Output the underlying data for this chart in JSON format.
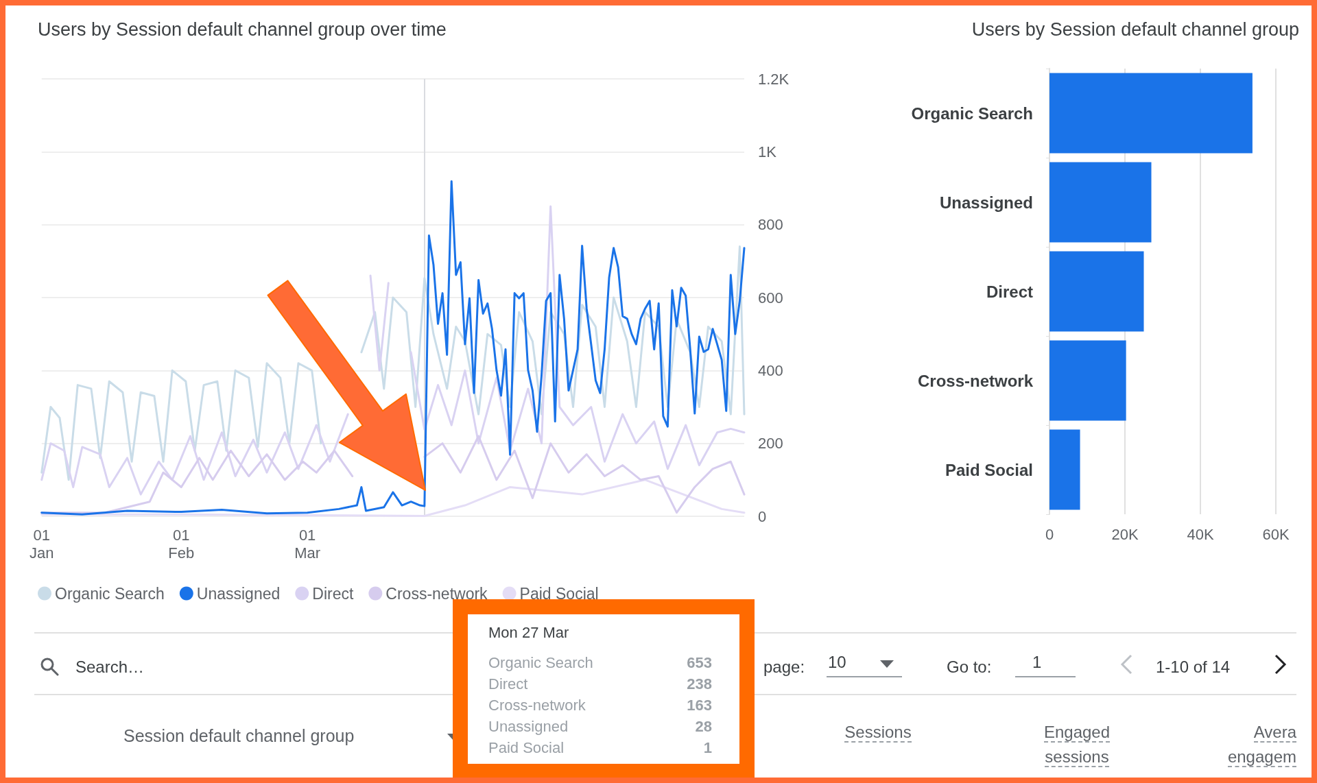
{
  "chart_data": [
    {
      "type": "line",
      "title": "Users by Session default channel group over time",
      "xlim": [
        "--01-01",
        "--06-06"
      ],
      "xticks": [
        {
          "value": "--01-01",
          "label": "01\nJan"
        },
        {
          "value": "--02-01",
          "label": "01\nFeb"
        },
        {
          "value": "--03-01",
          "label": "01\nMar"
        }
      ],
      "ylim": [
        0,
        1200
      ],
      "yticks": [
        0,
        200,
        400,
        600,
        800,
        {
          "value": 1000,
          "label": "1K"
        },
        {
          "value": 1200,
          "label": "1.2K"
        }
      ],
      "grid": "y",
      "legend": "bottom left",
      "ref_lines": [
        {
          "axis": "x",
          "value": "--03-27",
          "color": "#dadce0"
        }
      ],
      "annotations": [
        "Mon 27 Mar",
        "Organic Search",
        "653",
        "Direct",
        "238",
        "Cross-network",
        "163",
        "Unassigned",
        "28",
        "Paid Social",
        "1"
      ],
      "series": [
        {
          "name": "Organic Search",
          "color": "#c9dce8",
          "x": [
            "--01-01",
            "--01-03",
            "--01-05",
            "--01-07",
            "--01-09",
            "--01-12",
            "--01-14",
            "--01-16",
            "--01-19",
            "--01-21",
            "--01-23",
            "--01-26",
            "--01-28",
            "--01-30",
            "--02-02",
            "--02-04",
            "--02-06",
            "--02-09",
            "--02-11",
            "--02-13",
            "--02-16",
            "--02-18",
            "--02-20",
            "--02-23",
            "--02-25",
            "--02-27",
            "--03-02",
            "--03-04",
            "--03-06",
            "--03-09",
            "--03-11",
            "--03-13",
            "--03-16",
            "--03-18",
            "--03-20",
            "--03-23",
            "--03-25",
            "--03-27",
            "--03-29",
            "--04-01",
            "--04-03",
            "--04-05",
            "--04-08",
            "--04-10",
            "--04-13",
            "--04-15",
            "--04-17",
            "--04-20",
            "--04-22",
            "--04-24",
            "--04-27",
            "--04-29",
            "--05-01",
            "--05-04",
            "--05-06",
            "--05-08",
            "--05-11",
            "--05-13",
            "--05-15",
            "--05-18",
            "--05-20",
            "--05-22",
            "--05-25",
            "--05-27",
            "--05-29",
            "--06-01",
            "--06-03",
            "--06-05",
            "--06-06"
          ],
          "values": [
            120,
            300,
            270,
            100,
            360,
            350,
            160,
            370,
            340,
            150,
            340,
            330,
            150,
            400,
            370,
            180,
            360,
            370,
            180,
            400,
            380,
            190,
            420,
            380,
            200,
            420,
            400,
            200,
            null,
            null,
            null,
            450,
            560,
            350,
            600,
            560,
            300,
            653,
            500,
            350,
            520,
            480,
            280,
            500,
            470,
            300,
            560,
            480,
            280,
            560,
            500,
            300,
            580,
            520,
            300,
            600,
            480,
            300,
            560,
            520,
            300,
            540,
            450,
            300,
            520,
            480,
            280,
            740,
            280
          ]
        },
        {
          "name": "Unassigned",
          "color": "#1a73e8",
          "x": [
            "--01-01",
            "--01-10",
            "--01-20",
            "--02-01",
            "--02-10",
            "--02-20",
            "--03-01",
            "--03-08",
            "--03-12",
            "--03-13",
            "--03-14",
            "--03-18",
            "--03-20",
            "--03-22",
            "--03-24",
            "--03-26",
            "--03-27",
            "--03-28",
            "--03-29",
            "--03-30",
            "--03-31",
            "--04-01",
            "--04-02",
            "--04-03",
            "--04-04",
            "--04-05",
            "--04-06",
            "--04-07",
            "--04-08",
            "--04-09",
            "--04-10",
            "--04-11",
            "--04-12",
            "--04-13",
            "--04-14",
            "--04-15",
            "--04-16",
            "--04-17",
            "--04-18",
            "--04-19",
            "--04-20",
            "--04-21",
            "--04-22",
            "--04-23",
            "--04-24",
            "--04-25",
            "--04-26",
            "--04-27",
            "--04-28",
            "--04-29",
            "--04-30",
            "--05-01",
            "--05-02",
            "--05-03",
            "--05-04",
            "--05-05",
            "--05-06",
            "--05-07",
            "--05-08",
            "--05-09",
            "--05-10",
            "--05-11",
            "--05-12",
            "--05-13",
            "--05-14",
            "--05-15",
            "--05-16",
            "--05-17",
            "--05-18",
            "--05-19",
            "--05-20",
            "--05-21",
            "--05-22",
            "--05-23",
            "--05-24",
            "--05-25",
            "--05-26",
            "--05-27",
            "--05-28",
            "--05-29",
            "--05-30",
            "--05-31",
            "--06-01",
            "--06-02",
            "--06-03",
            "--06-04",
            "--06-05",
            "--06-06"
          ],
          "values": [
            10,
            5,
            15,
            12,
            18,
            8,
            10,
            20,
            30,
            80,
            15,
            25,
            66,
            30,
            40,
            30,
            28,
            770,
            690,
            528,
            612,
            443,
            919,
            662,
            697,
            472,
            598,
            338,
            648,
            556,
            584,
            514,
            401,
            331,
            458,
            169,
            612,
            598,
            612,
            401,
            345,
            232,
            387,
            591,
            612,
            260,
            662,
            542,
            345,
            401,
            458,
            742,
            570,
            472,
            373,
            338,
            458,
            655,
            736,
            683,
            549,
            542,
            500,
            472,
            542,
            570,
            591,
            458,
            584,
            275,
            246,
            620,
            521,
            627,
            605,
            458,
            282,
            493,
            451,
            458,
            514,
            472,
            429,
            289,
            662,
            500,
            591,
            736
          ]
        },
        {
          "name": "Direct",
          "color": "#d9d2f2",
          "x": [
            "--01-01",
            "--01-03",
            "--01-06",
            "--01-08",
            "--01-10",
            "--01-14",
            "--01-16",
            "--01-20",
            "--01-23",
            "--01-27",
            "--01-30",
            "--02-03",
            "--02-06",
            "--02-10",
            "--02-13",
            "--02-17",
            "--02-20",
            "--02-24",
            "--02-27",
            "--03-03",
            "--03-06",
            "--03-10",
            "--03-13",
            "--03-15",
            "--03-17",
            "--03-19",
            "--03-21",
            "--03-24",
            "--03-27",
            "--03-30",
            "--04-02",
            "--04-05",
            "--04-08",
            "--04-12",
            "--04-15",
            "--04-19",
            "--04-22",
            "--04-24",
            "--04-26",
            "--04-29",
            "--05-03",
            "--05-06",
            "--05-10",
            "--05-13",
            "--05-17",
            "--05-20",
            "--05-24",
            "--05-27",
            "--05-31",
            "--06-03",
            "--06-06"
          ],
          "values": [
            100,
            200,
            180,
            80,
            190,
            170,
            80,
            160,
            60,
            150,
            100,
            220,
            100,
            230,
            110,
            210,
            120,
            230,
            130,
            250,
            150,
            280,
            null,
            660,
            400,
            640,
            null,
            450,
            238,
            360,
            250,
            400,
            200,
            380,
            180,
            350,
            200,
            850,
            300,
            250,
            300,
            150,
            280,
            200,
            260,
            130,
            250,
            140,
            230,
            240,
            230
          ]
        },
        {
          "name": "Cross-network",
          "color": "#d6ccee",
          "x": [
            "--01-01",
            "--01-15",
            "--01-25",
            "--01-28",
            "--02-01",
            "--02-05",
            "--02-08",
            "--02-12",
            "--02-16",
            "--02-20",
            "--02-24",
            "--02-28",
            "--03-03",
            "--03-07",
            "--03-11",
            "--03-15",
            "--03-19",
            "--03-23",
            "--03-27",
            "--03-31",
            "--04-04",
            "--04-08",
            "--04-12",
            "--04-16",
            "--04-20",
            "--04-24",
            "--04-28",
            "--05-02",
            "--05-06",
            "--05-10",
            "--05-14",
            "--05-18",
            "--05-22",
            "--05-26",
            "--05-30",
            "--06-03",
            "--06-06"
          ],
          "values": [
            10,
            10,
            40,
            120,
            80,
            160,
            100,
            180,
            110,
            170,
            100,
            150,
            120,
            180,
            110,
            null,
            null,
            null,
            163,
            200,
            120,
            220,
            100,
            180,
            50,
            200,
            120,
            170,
            110,
            140,
            100,
            110,
            10,
            80,
            130,
            150,
            60
          ]
        },
        {
          "name": "Paid Social",
          "color": "#e4ddf6",
          "x": [
            "--01-01",
            "--02-01",
            "--03-01",
            "--03-27",
            "--04-05",
            "--04-15",
            "--05-01",
            "--05-15",
            "--06-01",
            "--06-06"
          ],
          "values": [
            5,
            5,
            3,
            1,
            30,
            80,
            60,
            100,
            20,
            10
          ]
        }
      ]
    },
    {
      "type": "bar",
      "orientation": "horizontal",
      "title": "Users by Session default channel group",
      "categories": [
        "Organic Search",
        "Unassigned",
        "Direct",
        "Cross-network",
        "Paid Social"
      ],
      "values": [
        53800,
        27000,
        25000,
        20300,
        8100
      ],
      "color": "#1a73e8",
      "xlim": [
        0,
        60000
      ],
      "xticks": [
        0,
        {
          "value": 20000,
          "label": "20K"
        },
        {
          "value": 40000,
          "label": "40K"
        },
        {
          "value": 60000,
          "label": "60K"
        }
      ],
      "grid": "x"
    },
    {
      "type": "other",
      "annotations": [
        "Search…",
        "page:",
        "10",
        "Go to:",
        "1",
        "1-10 of 14",
        "Session default channel group",
        "Sessions",
        "Engaged sessions",
        "Avera engagem"
      ]
    }
  ]
}
